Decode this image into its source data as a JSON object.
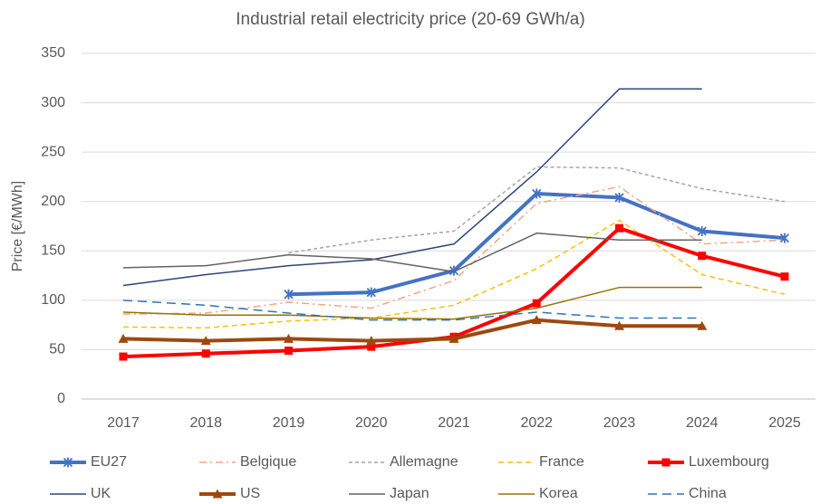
{
  "chart_data": {
    "type": "line",
    "title": "Industrial retail electricity price (20-69 GWh/a)",
    "y_label": "Price [€/MWh]",
    "categories": [
      "2017",
      "2018",
      "2019",
      "2020",
      "2021",
      "2022",
      "2023",
      "2024",
      "2025"
    ],
    "ylim": [
      0,
      350
    ],
    "yticks": [
      0,
      50,
      100,
      150,
      200,
      250,
      300,
      350
    ],
    "grid": true,
    "series": [
      {
        "name": "EU27",
        "color": "#4472c4",
        "width": 4,
        "marker": "star",
        "values": [
          null,
          null,
          106,
          108,
          130,
          208,
          204,
          170,
          163
        ]
      },
      {
        "name": "Belgique",
        "color": "#f4a582",
        "width": 1.5,
        "dash": "8 4 2 4",
        "values": [
          86,
          87,
          98,
          92,
          120,
          198,
          215,
          157,
          161
        ]
      },
      {
        "name": "Allemagne",
        "color": "#a6a6a6",
        "width": 1.5,
        "dash": "4 3",
        "values": [
          null,
          null,
          148,
          161,
          170,
          235,
          234,
          213,
          200
        ]
      },
      {
        "name": "France",
        "color": "#ffc000",
        "width": 1.5,
        "dash": "6 4",
        "values": [
          73,
          72,
          79,
          82,
          95,
          132,
          181,
          126,
          106
        ]
      },
      {
        "name": "Luxembourg",
        "color": "#ff0000",
        "width": 4,
        "marker": "square",
        "values": [
          43,
          46,
          49,
          53,
          63,
          97,
          173,
          145,
          124
        ]
      },
      {
        "name": "UK",
        "color": "#2f4478",
        "width": 1.5,
        "values": [
          115,
          126,
          135,
          141,
          157,
          230,
          314,
          314,
          null
        ]
      },
      {
        "name": "US",
        "color": "#9e480e",
        "width": 4,
        "marker": "triangle",
        "values": [
          61,
          59,
          61,
          59,
          61,
          80,
          74,
          74,
          null
        ]
      },
      {
        "name": "Japan",
        "color": "#636363",
        "width": 1.5,
        "values": [
          133,
          135,
          146,
          142,
          129,
          168,
          161,
          161,
          null
        ]
      },
      {
        "name": "Korea",
        "color": "#997300",
        "width": 1.5,
        "values": [
          88,
          85,
          85,
          82,
          81,
          92,
          113,
          113,
          null
        ]
      },
      {
        "name": "China",
        "color": "#2e75b6",
        "width": 1.5,
        "dash": "10 6",
        "values": [
          100,
          95,
          87,
          80,
          80,
          88,
          82,
          82,
          null
        ]
      }
    ]
  }
}
